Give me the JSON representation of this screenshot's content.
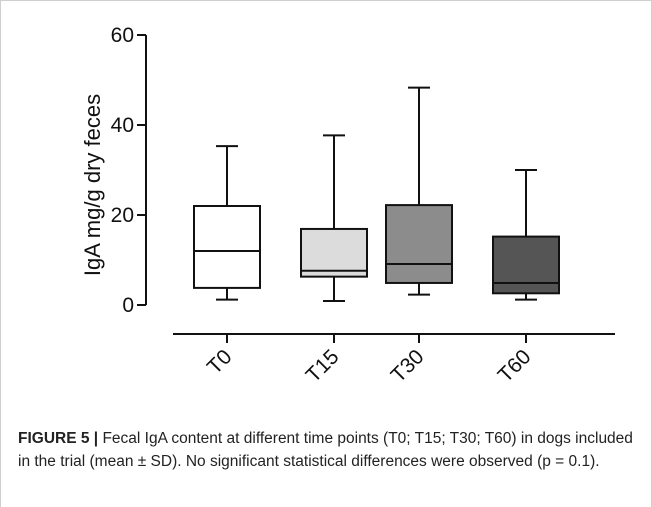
{
  "chart_data": {
    "type": "box",
    "ylabel": "IgA mg/g dry feces",
    "ylim": [
      0,
      60
    ],
    "yticks": [
      0,
      20,
      40,
      60
    ],
    "categories": [
      "T0",
      "T15",
      "T30",
      "T60"
    ],
    "boxes": [
      {
        "category": "T0",
        "min": 1.2,
        "q1": 3.8,
        "median": 12.0,
        "q3": 22.0,
        "max": 35.3,
        "fill": "#ffffff"
      },
      {
        "category": "T15",
        "min": 0.9,
        "q1": 6.3,
        "median": 7.6,
        "q3": 16.9,
        "max": 37.7,
        "fill": "#dcdcdc"
      },
      {
        "category": "T30",
        "min": 2.3,
        "q1": 4.9,
        "median": 9.1,
        "q3": 22.2,
        "max": 48.3,
        "fill": "#8c8c8c"
      },
      {
        "category": "T60",
        "min": 1.2,
        "q1": 2.6,
        "median": 4.9,
        "q3": 15.2,
        "max": 30.0,
        "fill": "#555555"
      }
    ]
  },
  "caption": {
    "label": "FIGURE 5 |",
    "text": "Fecal IgA content at different time points (T0; T15; T30; T60) in dogs included in the trial (mean ± SD). No significant statistical differences were observed (p = 0.1)."
  }
}
